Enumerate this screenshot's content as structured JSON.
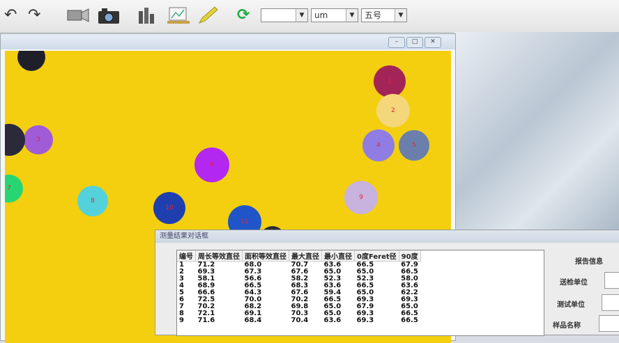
{
  "toolbar": {
    "icons": [
      "undo-icon",
      "redo-icon",
      "video-camera-icon",
      "camera-icon",
      "histogram-icon",
      "monitor-icon",
      "pencil-icon",
      "refresh-icon"
    ],
    "zoom_value": "",
    "unit_value": "um",
    "font_size_value": "五号"
  },
  "image_window": {
    "controls": [
      "minimize",
      "maximize",
      "close"
    ],
    "particles": [
      {
        "label": "1",
        "color": "#a32456"
      },
      {
        "label": "2",
        "color": "#f3d77a"
      },
      {
        "label": "3",
        "color": "#a05bd7"
      },
      {
        "label": "4",
        "color": "#8f7de4"
      },
      {
        "label": "5",
        "color": "#6a7fab"
      },
      {
        "label": "6",
        "color": "#b328f0"
      },
      {
        "label": "7",
        "color": "#27d672"
      },
      {
        "label": "8",
        "color": "#54d2dc"
      },
      {
        "label": "9",
        "color": "#c8b2de"
      },
      {
        "label": "10",
        "color": "#1f3fae"
      },
      {
        "label": "11",
        "color": "#1f55c9"
      },
      {
        "label": "",
        "color": "#2a2a3a"
      },
      {
        "label": "",
        "color": "#1f1f2a"
      },
      {
        "label": "",
        "color": "#2d2d35"
      }
    ]
  },
  "dialog": {
    "title": "测量结果对话框",
    "columns": [
      "编号",
      "周长等效直径",
      "面积等效直径",
      "最大直径",
      "最小直径",
      "0度Feret径",
      "90度"
    ],
    "rows": [
      [
        "1",
        "71.2",
        "68.0",
        "70.7",
        "63.6",
        "66.5",
        "67.9"
      ],
      [
        "2",
        "69.3",
        "67.3",
        "67.6",
        "65.0",
        "65.0",
        "66.5"
      ],
      [
        "3",
        "58.1",
        "56.6",
        "58.2",
        "52.3",
        "52.3",
        "58.0"
      ],
      [
        "4",
        "68.9",
        "66.5",
        "68.3",
        "63.6",
        "66.5",
        "63.6"
      ],
      [
        "5",
        "66.6",
        "64.3",
        "67.6",
        "59.4",
        "65.0",
        "62.2"
      ],
      [
        "6",
        "72.5",
        "70.0",
        "70.2",
        "66.5",
        "69.3",
        "69.3"
      ],
      [
        "7",
        "70.2",
        "68.2",
        "69.8",
        "65.0",
        "67.9",
        "65.0"
      ],
      [
        "8",
        "72.1",
        "69.1",
        "70.3",
        "65.0",
        "69.3",
        "66.5"
      ],
      [
        "9",
        "71.6",
        "68.4",
        "70.4",
        "63.6",
        "69.3",
        "66.5"
      ]
    ],
    "side_panel": {
      "title": "报告信息",
      "fields": [
        "送检单位",
        "测试单位",
        "样品名称"
      ]
    }
  }
}
